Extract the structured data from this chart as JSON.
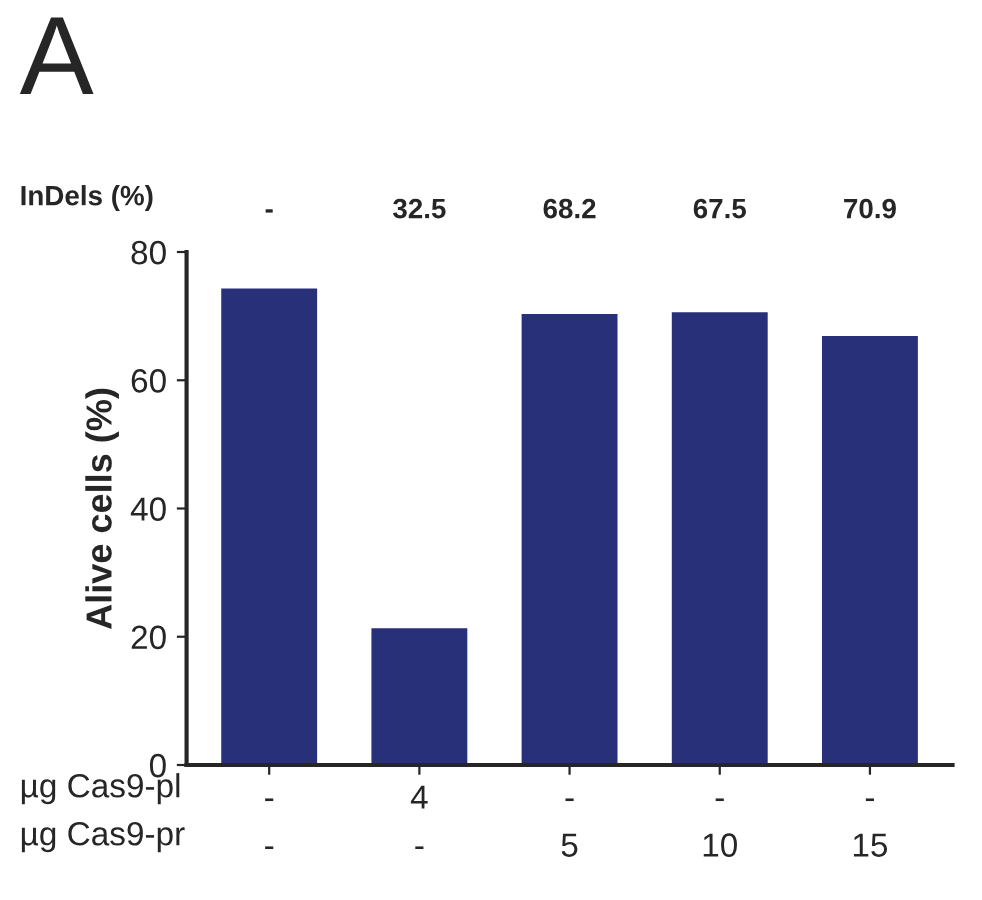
{
  "chart_data": {
    "type": "bar",
    "ylabel": "Alive cells (%)",
    "categories": [
      "-\n-",
      "4\n-",
      "-\n5",
      "-\n10",
      "-\n15"
    ],
    "values": [
      74.1,
      21.1,
      70.1,
      70.4,
      66.7
    ],
    "color": "#28307a",
    "ylim": [
      0,
      80
    ],
    "yticks": [
      0,
      20,
      40,
      60,
      80
    ],
    "grid": false,
    "annotations": [
      "A",
      "InDels (%)",
      "-",
      "32.5",
      "68.2",
      "67.5",
      "70.9",
      "µg Cas9-pl\nµg Cas9-pr"
    ]
  }
}
